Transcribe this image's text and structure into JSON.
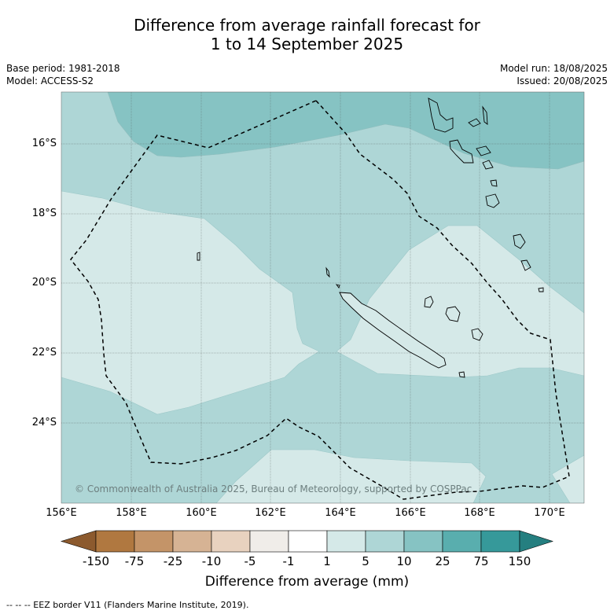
{
  "title_line1": "Difference from average rainfall forecast for",
  "title_line2": "1 to 14 September 2025",
  "meta_left": {
    "base_period": "Base period: 1981-2018",
    "model": "Model: ACCESS-S2"
  },
  "meta_right": {
    "model_run": "Model run: 18/08/2025",
    "issued": "Issued: 20/08/2025"
  },
  "copyright": "© Commonwealth of Australia 2025, Bureau of Meteorology, supported by COSPPac",
  "lat_labels": [
    "16°S",
    "18°S",
    "20°S",
    "22°S",
    "24°S"
  ],
  "lon_labels": [
    "156°E",
    "158°E",
    "160°E",
    "162°E",
    "164°E",
    "166°E",
    "168°E",
    "170°E"
  ],
  "colorbar": {
    "labels": [
      "-150",
      "-75",
      "-25",
      "-10",
      "-5",
      "-1",
      "1",
      "5",
      "10",
      "25",
      "75",
      "150"
    ],
    "colors": [
      "#8c5a2e",
      "#b07840",
      "#c49468",
      "#d6b394",
      "#e8d2bf",
      "#f0ede9",
      "#ffffff",
      "#d5e9e8",
      "#aed6d6",
      "#86c3c3",
      "#59aeae",
      "#36999a",
      "#257f80"
    ],
    "title": "Difference from average (mm)"
  },
  "footer": "--  --  -- EEZ border V11 (Flanders Marine Institute, 2019).",
  "map_colors": {
    "class_1_5": "#d5e9e8",
    "class_5_10": "#aed6d6",
    "class_10_25": "#86c3c3"
  }
}
